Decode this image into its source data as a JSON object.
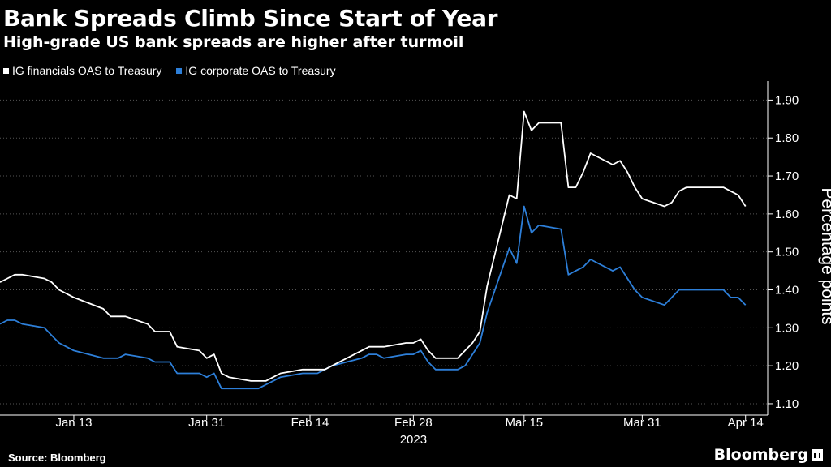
{
  "header": {
    "title": "Bank Spreads Climb Since Start of Year",
    "subtitle": "High-grade US bank spreads are higher after turmoil"
  },
  "footer": {
    "source": "Source: Bloomberg",
    "brand": "Bloomberg"
  },
  "colors": {
    "background": "#000000",
    "financials": "#ffffff",
    "corporate": "#2d7fd9",
    "grid": "#555555"
  },
  "chart_data": {
    "type": "line",
    "title": "Bank Spreads Climb Since Start of Year",
    "subtitle": "High-grade US bank spreads are higher after turmoil",
    "ylabel": "Percentage points",
    "xlabel": "2023",
    "ylim": [
      1.07,
      1.95
    ],
    "xlim": [
      "2023-01-03",
      "2023-04-17"
    ],
    "yticks": [
      "1.10",
      "1.20",
      "1.30",
      "1.40",
      "1.50",
      "1.60",
      "1.70",
      "1.80",
      "1.90"
    ],
    "xticks": [
      {
        "date": "2023-01-13",
        "label": "Jan 13"
      },
      {
        "date": "2023-01-31",
        "label": "Jan 31"
      },
      {
        "date": "2023-02-14",
        "label": "Feb 14"
      },
      {
        "date": "2023-02-28",
        "label": "Feb 28"
      },
      {
        "date": "2023-03-15",
        "label": "Mar 15"
      },
      {
        "date": "2023-03-31",
        "label": "Mar 31"
      },
      {
        "date": "2023-04-14",
        "label": "Apr 14"
      }
    ],
    "year_label": "2023",
    "grid": true,
    "grid_style": "dotted-horizontal",
    "y_axis_side": "right",
    "legend_position": "top-left",
    "x": [
      "2023-01-03",
      "2023-01-04",
      "2023-01-05",
      "2023-01-06",
      "2023-01-09",
      "2023-01-10",
      "2023-01-11",
      "2023-01-12",
      "2023-01-13",
      "2023-01-17",
      "2023-01-18",
      "2023-01-19",
      "2023-01-20",
      "2023-01-23",
      "2023-01-24",
      "2023-01-25",
      "2023-01-26",
      "2023-01-27",
      "2023-01-30",
      "2023-01-31",
      "2023-02-01",
      "2023-02-02",
      "2023-02-03",
      "2023-02-06",
      "2023-02-07",
      "2023-02-08",
      "2023-02-09",
      "2023-02-10",
      "2023-02-13",
      "2023-02-14",
      "2023-02-15",
      "2023-02-16",
      "2023-02-17",
      "2023-02-21",
      "2023-02-22",
      "2023-02-23",
      "2023-02-24",
      "2023-02-27",
      "2023-02-28",
      "2023-03-01",
      "2023-03-02",
      "2023-03-03",
      "2023-03-06",
      "2023-03-07",
      "2023-03-08",
      "2023-03-09",
      "2023-03-10",
      "2023-03-13",
      "2023-03-14",
      "2023-03-15",
      "2023-03-16",
      "2023-03-17",
      "2023-03-20",
      "2023-03-21",
      "2023-03-22",
      "2023-03-23",
      "2023-03-24",
      "2023-03-27",
      "2023-03-28",
      "2023-03-29",
      "2023-03-30",
      "2023-03-31",
      "2023-04-03",
      "2023-04-04",
      "2023-04-05",
      "2023-04-06",
      "2023-04-10",
      "2023-04-11",
      "2023-04-12",
      "2023-04-13",
      "2023-04-14"
    ],
    "series": [
      {
        "name": "IG financials OAS to Treasury",
        "color": "#ffffff",
        "values": [
          1.42,
          1.43,
          1.44,
          1.44,
          1.43,
          1.42,
          1.4,
          1.39,
          1.38,
          1.35,
          1.33,
          1.33,
          1.33,
          1.31,
          1.29,
          1.29,
          1.29,
          1.25,
          1.24,
          1.22,
          1.23,
          1.18,
          1.17,
          1.16,
          1.16,
          1.16,
          1.17,
          1.18,
          1.19,
          1.19,
          1.19,
          1.19,
          1.2,
          1.24,
          1.25,
          1.25,
          1.25,
          1.26,
          1.26,
          1.27,
          1.24,
          1.22,
          1.22,
          1.24,
          1.26,
          1.29,
          1.41,
          1.65,
          1.64,
          1.87,
          1.82,
          1.84,
          1.84,
          1.67,
          1.67,
          1.71,
          1.76,
          1.73,
          1.74,
          1.71,
          1.67,
          1.64,
          1.62,
          1.63,
          1.66,
          1.67,
          1.67,
          1.67,
          1.66,
          1.65,
          1.62
        ]
      },
      {
        "name": "IG corporate OAS to Treasury",
        "color": "#2d7fd9",
        "values": [
          1.31,
          1.32,
          1.32,
          1.31,
          1.3,
          1.28,
          1.26,
          1.25,
          1.24,
          1.22,
          1.22,
          1.22,
          1.23,
          1.22,
          1.21,
          1.21,
          1.21,
          1.18,
          1.18,
          1.17,
          1.18,
          1.14,
          1.14,
          1.14,
          1.14,
          1.15,
          1.16,
          1.17,
          1.18,
          1.18,
          1.18,
          1.19,
          1.2,
          1.22,
          1.23,
          1.23,
          1.22,
          1.23,
          1.23,
          1.24,
          1.21,
          1.19,
          1.19,
          1.2,
          1.23,
          1.26,
          1.34,
          1.51,
          1.47,
          1.62,
          1.55,
          1.57,
          1.56,
          1.44,
          1.45,
          1.46,
          1.48,
          1.45,
          1.46,
          1.43,
          1.4,
          1.38,
          1.36,
          1.38,
          1.4,
          1.4,
          1.4,
          1.4,
          1.38,
          1.38,
          1.36
        ]
      }
    ]
  }
}
